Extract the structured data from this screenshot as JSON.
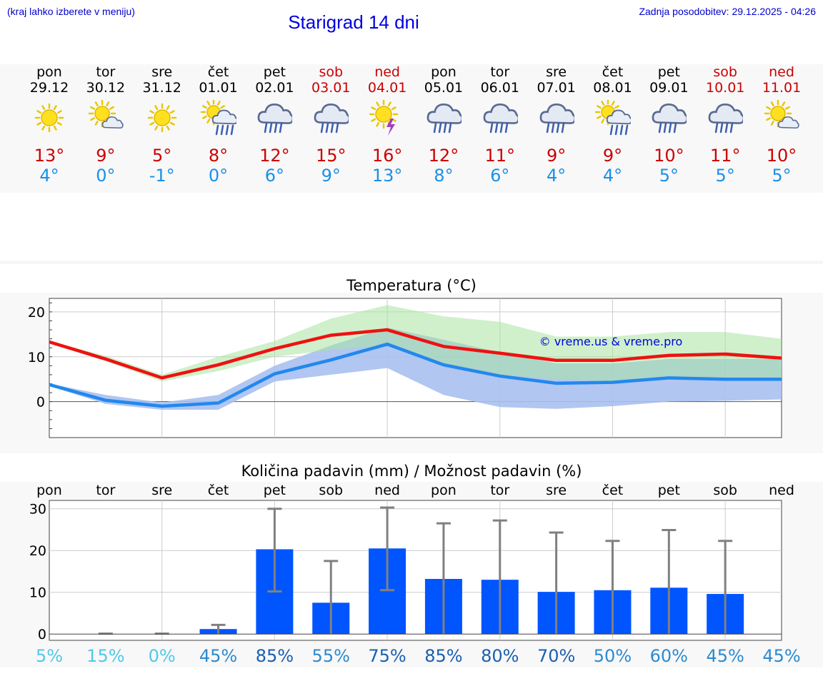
{
  "header": {
    "menu_hint": "(kraj lahko izberete v meniju)",
    "title": "Starigrad 14 dni",
    "updated": "Zadnja posodobitev: 29.12.2025 - 04:26"
  },
  "days": [
    {
      "name": "pon",
      "date": "29.12",
      "icon": "sun-icon",
      "max": "13°",
      "min": "4°",
      "weekend": false
    },
    {
      "name": "tor",
      "date": "30.12",
      "icon": "sun-cloud-icon",
      "max": "9°",
      "min": "0°",
      "weekend": false
    },
    {
      "name": "sre",
      "date": "31.12",
      "icon": "sun-icon",
      "max": "5°",
      "min": "-1°",
      "weekend": false
    },
    {
      "name": "čet",
      "date": "01.01",
      "icon": "sun-cloud-rain-icon",
      "max": "8°",
      "min": "0°",
      "weekend": false
    },
    {
      "name": "pet",
      "date": "02.01",
      "icon": "cloud-rain-icon",
      "max": "12°",
      "min": "6°",
      "weekend": false
    },
    {
      "name": "sob",
      "date": "03.01",
      "icon": "cloud-rain-icon",
      "max": "15°",
      "min": "9°",
      "weekend": true
    },
    {
      "name": "ned",
      "date": "04.01",
      "icon": "sun-thunder-icon",
      "max": "16°",
      "min": "13°",
      "weekend": true
    },
    {
      "name": "pon",
      "date": "05.01",
      "icon": "cloud-rain-icon",
      "max": "12°",
      "min": "8°",
      "weekend": false
    },
    {
      "name": "tor",
      "date": "06.01",
      "icon": "cloud-rain-icon",
      "max": "11°",
      "min": "6°",
      "weekend": false
    },
    {
      "name": "sre",
      "date": "07.01",
      "icon": "cloud-rain-icon",
      "max": "9°",
      "min": "4°",
      "weekend": false
    },
    {
      "name": "čet",
      "date": "08.01",
      "icon": "sun-cloud-rain-icon",
      "max": "9°",
      "min": "4°",
      "weekend": false
    },
    {
      "name": "pet",
      "date": "09.01",
      "icon": "cloud-rain-icon",
      "max": "10°",
      "min": "5°",
      "weekend": false
    },
    {
      "name": "sob",
      "date": "10.01",
      "icon": "cloud-rain-icon",
      "max": "11°",
      "min": "5°",
      "weekend": true
    },
    {
      "name": "ned",
      "date": "11.01",
      "icon": "sun-cloud-icon",
      "max": "10°",
      "min": "5°",
      "weekend": true
    }
  ],
  "colors": {
    "max_line": "#ee1111",
    "min_line": "#2288ee",
    "max_band": "#a8e4a0",
    "min_band": "#a8c0f0",
    "overlap_band": "#84c8b0",
    "bar": "#0055ff",
    "whisker": "#808080"
  },
  "chart_data": [
    {
      "type": "line",
      "title": "Temperatura (°C)",
      "watermark": "© vreme.us & vreme.pro",
      "x": [
        0,
        1,
        2,
        3,
        4,
        5,
        6,
        7,
        8,
        9,
        10,
        11,
        12,
        13
      ],
      "ylim": [
        -8,
        23
      ],
      "yticks": [
        "20",
        "10",
        "0"
      ],
      "ytick_values": [
        20,
        10,
        0
      ],
      "series": [
        {
          "name": "max",
          "values": [
            13.3,
            9.5,
            5.3,
            8.2,
            11.8,
            14.8,
            16.0,
            12.3,
            10.8,
            9.2,
            9.2,
            10.3,
            10.6,
            9.7
          ],
          "band_low": [
            13.0,
            9.0,
            4.5,
            6.8,
            10.0,
            11.5,
            12.5,
            8.5,
            6.0,
            5.0,
            4.5,
            5.0,
            5.2,
            5.0
          ],
          "band_high": [
            13.5,
            10.2,
            6.0,
            10.0,
            13.5,
            18.5,
            21.5,
            19.0,
            17.8,
            14.5,
            14.5,
            15.5,
            15.5,
            14.0
          ]
        },
        {
          "name": "min",
          "values": [
            3.8,
            0.3,
            -1.0,
            -0.3,
            6.2,
            9.3,
            12.8,
            8.2,
            5.7,
            4.1,
            4.3,
            5.3,
            5.0,
            5.0
          ],
          "band_low": [
            3.5,
            -0.5,
            -1.8,
            -1.8,
            4.5,
            6.0,
            7.5,
            1.5,
            -1.2,
            -1.6,
            -1.0,
            0.0,
            0.2,
            0.5
          ],
          "band_high": [
            4.0,
            1.5,
            -0.2,
            1.5,
            8.0,
            12.5,
            16.5,
            13.8,
            11.0,
            8.5,
            8.5,
            9.5,
            9.5,
            9.5
          ]
        }
      ]
    },
    {
      "type": "bar",
      "title": "Količina padavin (mm) / Možnost padavin (%)",
      "categories": [
        "pon",
        "tor",
        "sre",
        "čet",
        "pet",
        "sob",
        "ned",
        "pon",
        "tor",
        "sre",
        "čet",
        "pet",
        "sob",
        "ned"
      ],
      "values": [
        0,
        0,
        0,
        1.2,
        20.3,
        7.5,
        20.5,
        13.2,
        13.0,
        10.1,
        10.5,
        11.1,
        9.6,
        0
      ],
      "err_low": [
        0,
        0,
        0,
        0,
        10.2,
        0,
        10.5,
        0,
        0,
        0,
        0,
        0,
        0,
        0
      ],
      "err_high": [
        0,
        0.1,
        0.1,
        2.2,
        30.0,
        17.5,
        30.3,
        26.5,
        27.2,
        24.3,
        22.3,
        24.9,
        22.3,
        0
      ],
      "ylim": [
        -1.5,
        32
      ],
      "yticks": [
        "30",
        "20",
        "10",
        "0"
      ],
      "ytick_values": [
        30,
        20,
        10,
        0
      ],
      "probabilities": [
        "5%",
        "15%",
        "0%",
        "45%",
        "85%",
        "55%",
        "75%",
        "85%",
        "80%",
        "70%",
        "50%",
        "60%",
        "45%",
        "45%"
      ],
      "prob_values": [
        5,
        15,
        0,
        45,
        85,
        55,
        75,
        85,
        80,
        70,
        50,
        60,
        45,
        45
      ]
    }
  ]
}
